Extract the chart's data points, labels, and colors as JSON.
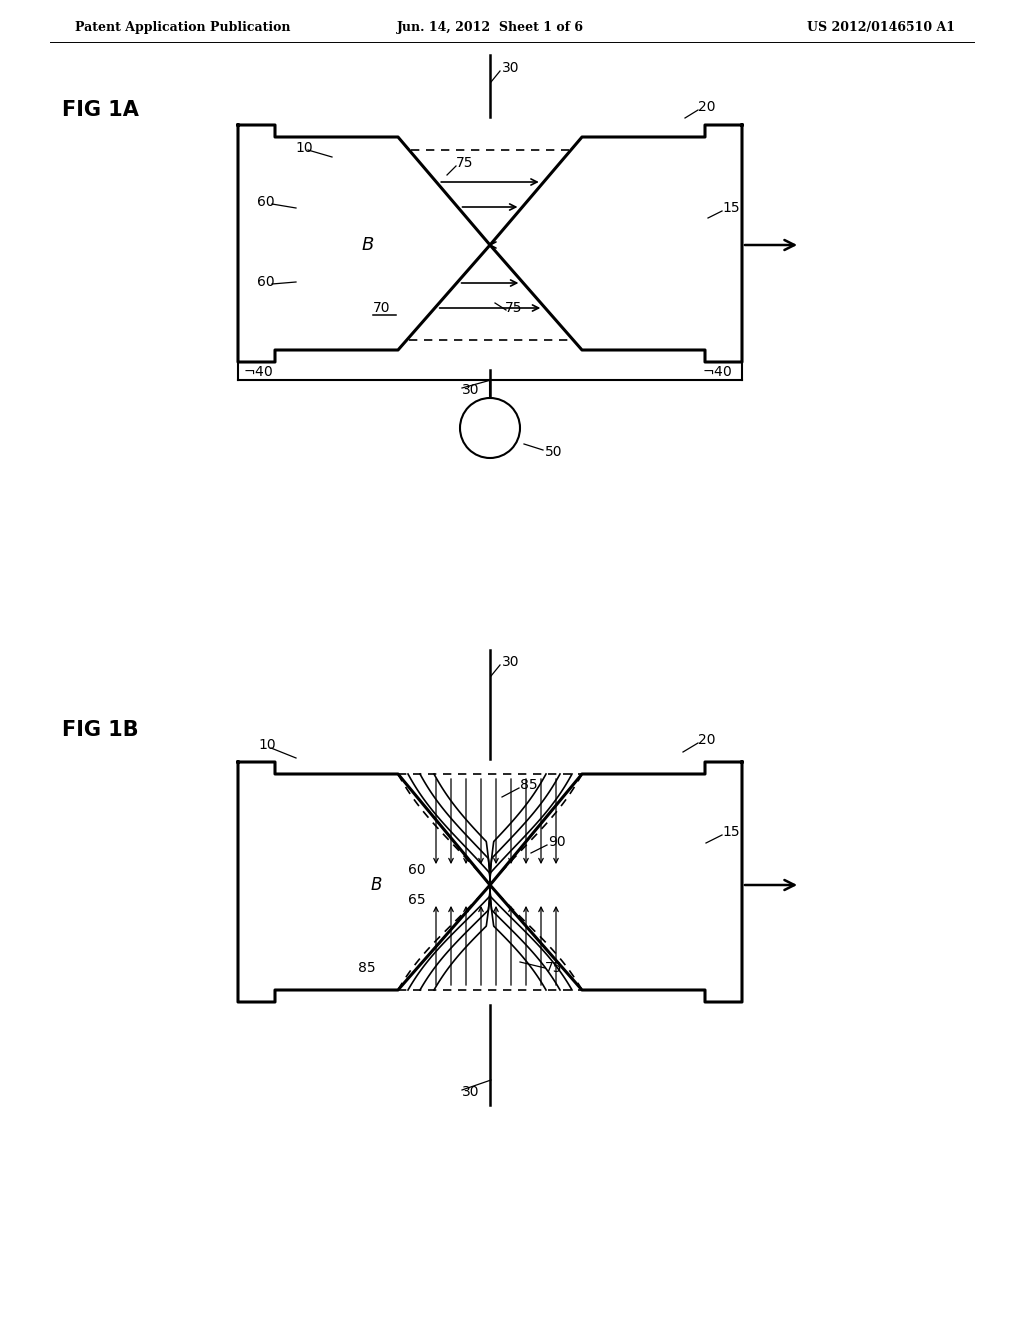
{
  "header_left": "Patent Application Publication",
  "header_center": "Jun. 14, 2012  Sheet 1 of 6",
  "header_right": "US 2012/0146510 A1",
  "fig1a_label": "FIG 1A",
  "fig1b_label": "FIG 1B",
  "bg_color": "#ffffff",
  "line_color": "#000000"
}
